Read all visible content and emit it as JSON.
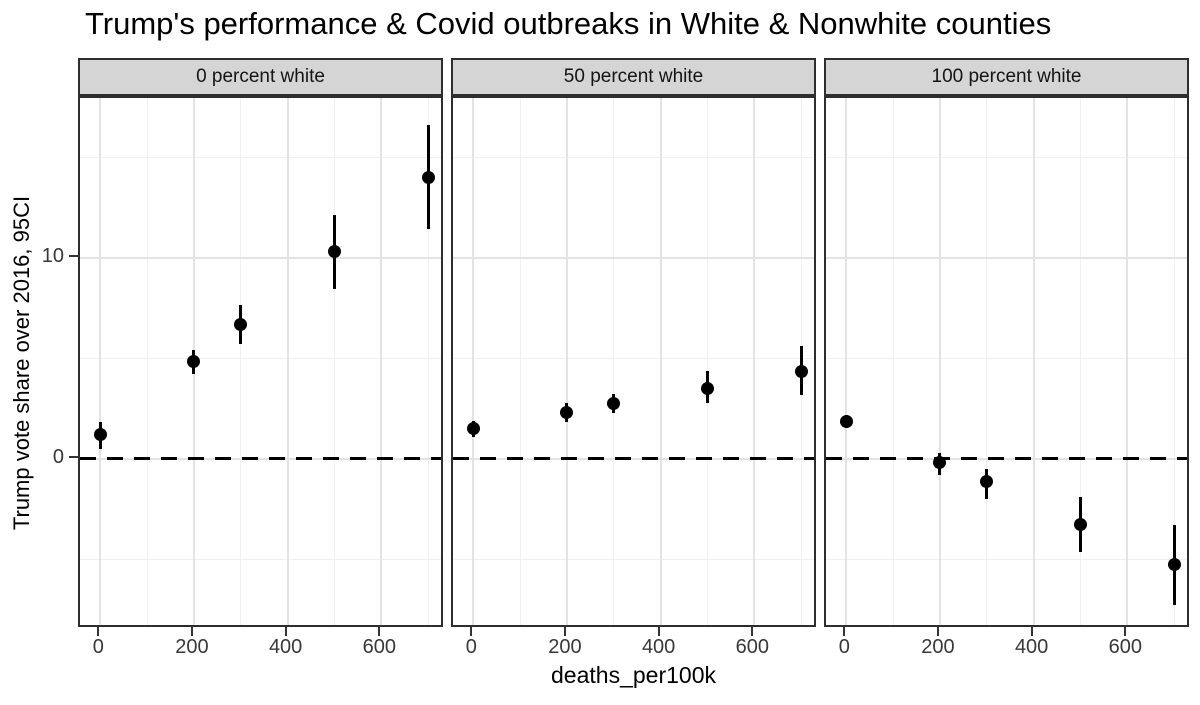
{
  "title": "Trump's performance & Covid outbreaks in White & Nonwhite counties",
  "colors": {
    "point": "#000000",
    "error_bar": "#000000",
    "reference_line": "#000000",
    "strip_fill": "#d5d5d5",
    "panel_border": "#2e2e2e",
    "grid_major": "#e3e3e3",
    "grid_minor": "#f0f0f0",
    "tick_text": "#383838",
    "background": "#ffffff"
  },
  "chart_data": {
    "type": "scatter",
    "subtype": "point-estimates-with-95ci-error-bars, 3 facets",
    "title": "Trump's performance & Covid outbreaks in White & Nonwhite counties",
    "xlabel": "deaths_per100k",
    "ylabel": "Trump vote share over 2016, 95CI",
    "legend_position": "none",
    "grid": true,
    "x_major_ticks": [
      0,
      200,
      400,
      600
    ],
    "x_minor_gridlines": [
      100,
      300,
      500,
      700
    ],
    "y_major_ticks": [
      10,
      0
    ],
    "y_minor_gridlines": [
      15,
      5,
      -5
    ],
    "xlim": [
      -43.3,
      736
    ],
    "ylim": [
      -8.47,
      17.94
    ],
    "reference_line_y": 0,
    "facets": [
      {
        "label": "0 percent white",
        "x": [
          0,
          200,
          300,
          500,
          700
        ],
        "y": [
          1.2,
          4.85,
          6.65,
          10.3,
          14.0
        ],
        "ci_low": [
          0.5,
          4.2,
          5.7,
          8.45,
          11.4
        ],
        "ci_high": [
          1.85,
          5.4,
          7.65,
          12.1,
          16.6
        ]
      },
      {
        "label": "50 percent white",
        "x": [
          0,
          200,
          300,
          500,
          700
        ],
        "y": [
          1.5,
          2.3,
          2.75,
          3.5,
          4.35
        ],
        "ci_low": [
          1.1,
          1.85,
          2.25,
          2.75,
          3.15
        ],
        "ci_high": [
          1.9,
          2.75,
          3.2,
          4.35,
          5.6
        ]
      },
      {
        "label": "100 percent white",
        "x": [
          0,
          200,
          300,
          500,
          700
        ],
        "y": [
          1.85,
          -0.2,
          -1.15,
          -3.25,
          -5.25
        ],
        "ci_low": [
          1.55,
          -0.8,
          -2.0,
          -4.65,
          -7.3
        ],
        "ci_high": [
          2.15,
          0.3,
          -0.5,
          -1.9,
          -3.3
        ]
      }
    ]
  }
}
